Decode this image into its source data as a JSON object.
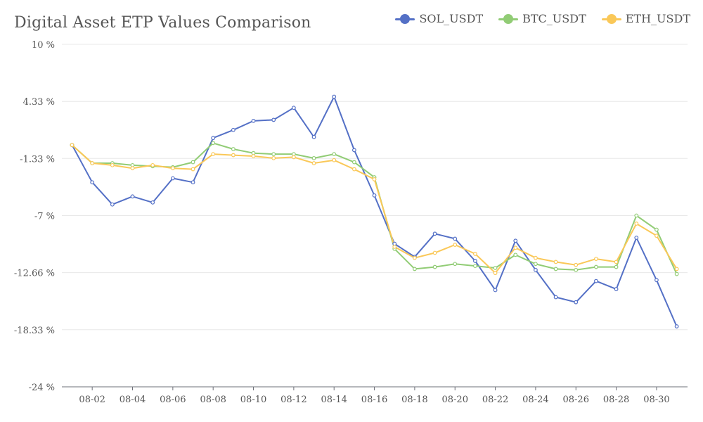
{
  "chart_data": {
    "type": "line",
    "title": "Digital Asset ETP Values Comparison",
    "xlabel": "",
    "ylabel": "",
    "y_ticks": [
      "10 %",
      "4.33 %",
      "-1.33 %",
      "-7 %",
      "-12.66 %",
      "-18.33 %",
      "-24 %"
    ],
    "y_tick_values": [
      10,
      4.33,
      -1.33,
      -7,
      -12.66,
      -18.33,
      -24
    ],
    "ylim": [
      -24,
      10
    ],
    "x": [
      "08-01",
      "08-02",
      "08-03",
      "08-04",
      "08-05",
      "08-06",
      "08-07",
      "08-08",
      "08-09",
      "08-10",
      "08-11",
      "08-12",
      "08-13",
      "08-14",
      "08-15",
      "08-16",
      "08-17",
      "08-18",
      "08-19",
      "08-20",
      "08-21",
      "08-22",
      "08-23",
      "08-24",
      "08-25",
      "08-26",
      "08-27",
      "08-28",
      "08-29",
      "08-30",
      "08-31"
    ],
    "x_tick_labels": [
      "08-02",
      "08-04",
      "08-06",
      "08-08",
      "08-10",
      "08-12",
      "08-14",
      "08-16",
      "08-18",
      "08-20",
      "08-22",
      "08-24",
      "08-26",
      "08-28",
      "08-30"
    ],
    "legend_position": "top-right",
    "grid": true,
    "series": [
      {
        "name": "SOL_USDT",
        "color": "#5470c6",
        "values": [
          0,
          -3.7,
          -5.9,
          -5.1,
          -5.7,
          -3.3,
          -3.7,
          0.7,
          1.5,
          2.4,
          2.5,
          3.7,
          0.8,
          4.8,
          -0.5,
          -5.0,
          -9.8,
          -11.1,
          -8.8,
          -9.3,
          -11.5,
          -14.4,
          -9.5,
          -12.4,
          -15.1,
          -15.6,
          -13.5,
          -14.3,
          -9.2,
          -13.4,
          -18.0
        ]
      },
      {
        "name": "BTC_USDT",
        "color": "#91cc75",
        "values": [
          0,
          -1.8,
          -1.8,
          -2.0,
          -2.1,
          -2.2,
          -1.7,
          0.2,
          -0.4,
          -0.8,
          -0.9,
          -0.9,
          -1.3,
          -0.9,
          -1.7,
          -3.2,
          -10.3,
          -12.3,
          -12.1,
          -11.8,
          -12.0,
          -12.2,
          -10.9,
          -11.8,
          -12.3,
          -12.4,
          -12.1,
          -12.1,
          -7.0,
          -8.4,
          -12.8
        ]
      },
      {
        "name": "ETH_USDT",
        "color": "#fac858",
        "values": [
          0,
          -1.8,
          -2.0,
          -2.3,
          -2.0,
          -2.3,
          -2.4,
          -0.9,
          -1.0,
          -1.1,
          -1.3,
          -1.2,
          -1.8,
          -1.5,
          -2.4,
          -3.4,
          -10.1,
          -11.2,
          -10.7,
          -9.9,
          -10.8,
          -12.7,
          -10.2,
          -11.2,
          -11.6,
          -11.9,
          -11.3,
          -11.6,
          -7.8,
          -9.0,
          -12.3
        ]
      }
    ]
  }
}
